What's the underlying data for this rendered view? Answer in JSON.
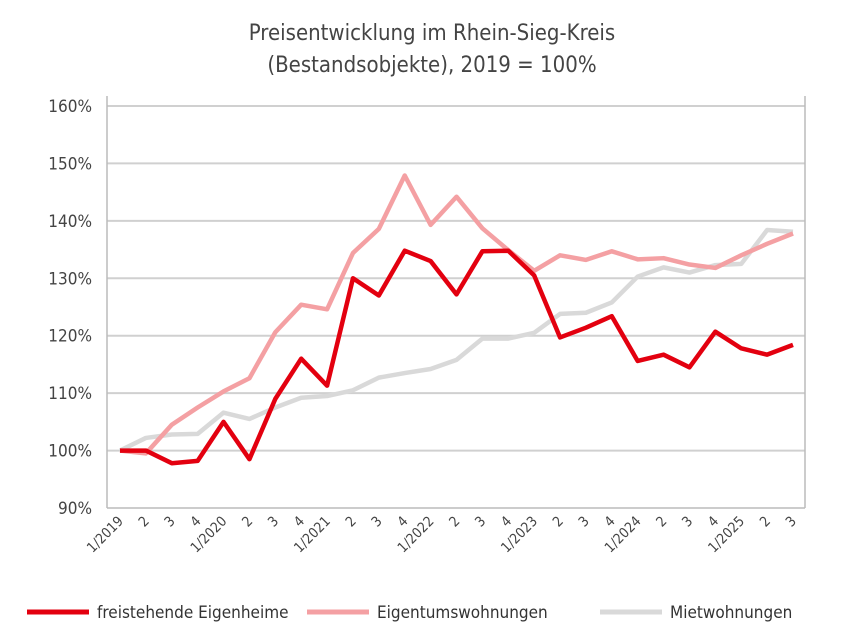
{
  "chart_data": {
    "type": "line",
    "title": [
      "Preisentwicklung im Rhein-Sieg-Kreis",
      "(Bestandsobjekte), 2019 = 100%"
    ],
    "xlabel": "",
    "ylabel": "",
    "ylim": [
      90,
      160
    ],
    "yticks": [
      "90%",
      "100%",
      "110%",
      "120%",
      "130%",
      "140%",
      "150%",
      "160%"
    ],
    "grid": true,
    "legend": "bottom",
    "categories": [
      "1/2019",
      "2",
      "3",
      "4",
      "1/2020",
      "2",
      "3",
      "4",
      "1/2021",
      "2",
      "3",
      "4",
      "1/2022",
      "2",
      "3",
      "4",
      "1/2023",
      "2",
      "3",
      "4",
      "1/2024",
      "2",
      "3",
      "4",
      "1/2025",
      "2",
      "3"
    ],
    "series": [
      {
        "name": "freistehende Eigenheime",
        "color": "#e3000f",
        "values": [
          100,
          100,
          97.8,
          98.2,
          105,
          98.5,
          109,
          116,
          111.3,
          130,
          127,
          134.8,
          133,
          127.2,
          134.7,
          134.8,
          130.5,
          119.7,
          121.4,
          123.4,
          115.6,
          116.7,
          114.5,
          120.7,
          117.8,
          116.7,
          118.4
        ]
      },
      {
        "name": "Eigentumswohnungen",
        "color": "#f4a0a3",
        "values": [
          100,
          99.5,
          104.5,
          107.5,
          110.3,
          112.6,
          120.6,
          125.4,
          124.6,
          134.4,
          138.6,
          147.9,
          139.3,
          144.2,
          138.7,
          134.9,
          131.3,
          134,
          133.2,
          134.7,
          133.3,
          133.5,
          132.4,
          131.8,
          134,
          136,
          137.8
        ]
      },
      {
        "name": "Mietwohnungen",
        "color": "#d9d9d9",
        "values": [
          100,
          102.2,
          102.8,
          102.9,
          106.6,
          105.5,
          107.5,
          109.2,
          109.5,
          110.5,
          112.7,
          113.5,
          114.2,
          115.8,
          119.5,
          119.5,
          120.5,
          123.8,
          124,
          125.8,
          130.3,
          131.9,
          131,
          132.3,
          132.5,
          138.4,
          138.1
        ]
      }
    ]
  }
}
